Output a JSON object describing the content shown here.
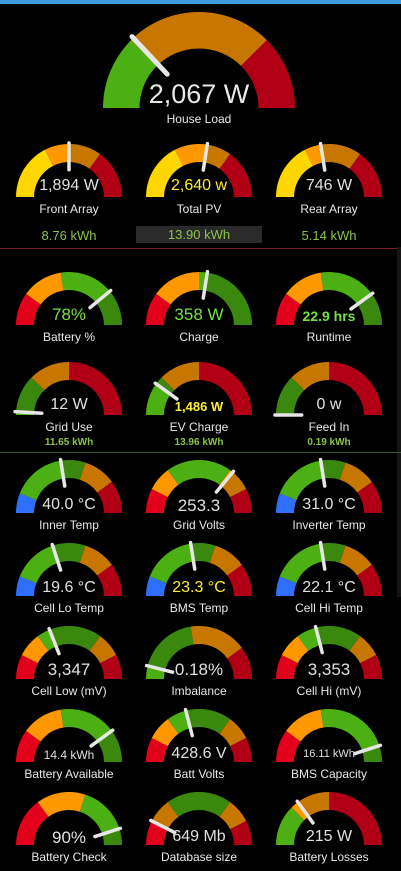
{
  "colors": {
    "accent_bar": "#3f9be0",
    "green": "#4caf14",
    "yellow": "#ffd600",
    "orange": "#ff9800",
    "red": "#e3001b",
    "blue": "#2f6fff",
    "energy_text": "#8bc34a"
  },
  "house_load": {
    "value": "2,067 W",
    "label": "House Load",
    "fraction": 0.26
  },
  "solar": {
    "front": {
      "value": "1,894 W",
      "label": "Front Array",
      "fraction": 0.5,
      "energy": "8.76 kWh"
    },
    "total": {
      "value": "2,640 w",
      "label": "Total PV",
      "fraction": 0.55,
      "energy": "13.90 kWh"
    },
    "rear": {
      "value": "746 W",
      "label": "Rear Array",
      "fraction": 0.45,
      "energy": "5.14 kWh"
    }
  },
  "battery": {
    "percent": {
      "value": "78%",
      "label": "Battery %",
      "fraction": 0.78
    },
    "charge": {
      "value": "358 W",
      "label": "Charge",
      "fraction": 0.55
    },
    "runtime": {
      "value": "22.9 hrs",
      "label": "Runtime",
      "fraction": 0.8
    }
  },
  "grid": {
    "use": {
      "value": "12 W",
      "label": "Grid Use",
      "fraction": 0.02,
      "energy": "11.65 kWh"
    },
    "ev": {
      "value": "1,486 W",
      "label": "EV Charge",
      "fraction": 0.2,
      "energy": "13.96 kWh"
    },
    "feed": {
      "value": "0 w",
      "label": "Feed In",
      "fraction": 0.0,
      "energy": "0.19 kWh"
    }
  },
  "temps": {
    "inner": {
      "value": "40.0 °C",
      "label": "Inner Temp",
      "fraction": 0.45
    },
    "grid": {
      "value": "253.3",
      "label": "Grid Volts",
      "fraction": 0.72
    },
    "inverter": {
      "value": "31.0 °C",
      "label": "Inverter Temp",
      "fraction": 0.45
    }
  },
  "cells": {
    "lo_temp": {
      "value": "19.6 °C",
      "label": "Cell Lo Temp",
      "fraction": 0.4
    },
    "bms_temp": {
      "value": "23.3 °C",
      "label": "BMS Temp",
      "fraction": 0.45
    },
    "hi_temp": {
      "value": "22.1 °C",
      "label": "Cell Hi Temp",
      "fraction": 0.45
    }
  },
  "volts": {
    "cell_low": {
      "value": "3,347",
      "label": "Cell Low (mV)",
      "fraction": 0.38
    },
    "imbalance": {
      "value": "0.18%",
      "label": "Imbalance",
      "fraction": 0.08
    },
    "cell_hi": {
      "value": "3,353",
      "label": "Cell Hi (mV)",
      "fraction": 0.42
    }
  },
  "capacity": {
    "available": {
      "value": "14.4 kWh",
      "label": "Battery Available",
      "fraction": 0.8
    },
    "batt_volts": {
      "value": "428.6 V",
      "label": "Batt Volts",
      "fraction": 0.42
    },
    "bms_cap": {
      "value": "16.11 kWh",
      "label": "BMS Capacity",
      "fraction": 0.9
    }
  },
  "misc": {
    "check": {
      "value": "90%",
      "label": "Battery Check",
      "fraction": 0.9
    },
    "db": {
      "value": "649 Mb",
      "label": "Database size",
      "fraction": 0.15
    },
    "losses": {
      "value": "215 W",
      "label": "Battery Losses",
      "fraction": 0.3
    }
  }
}
